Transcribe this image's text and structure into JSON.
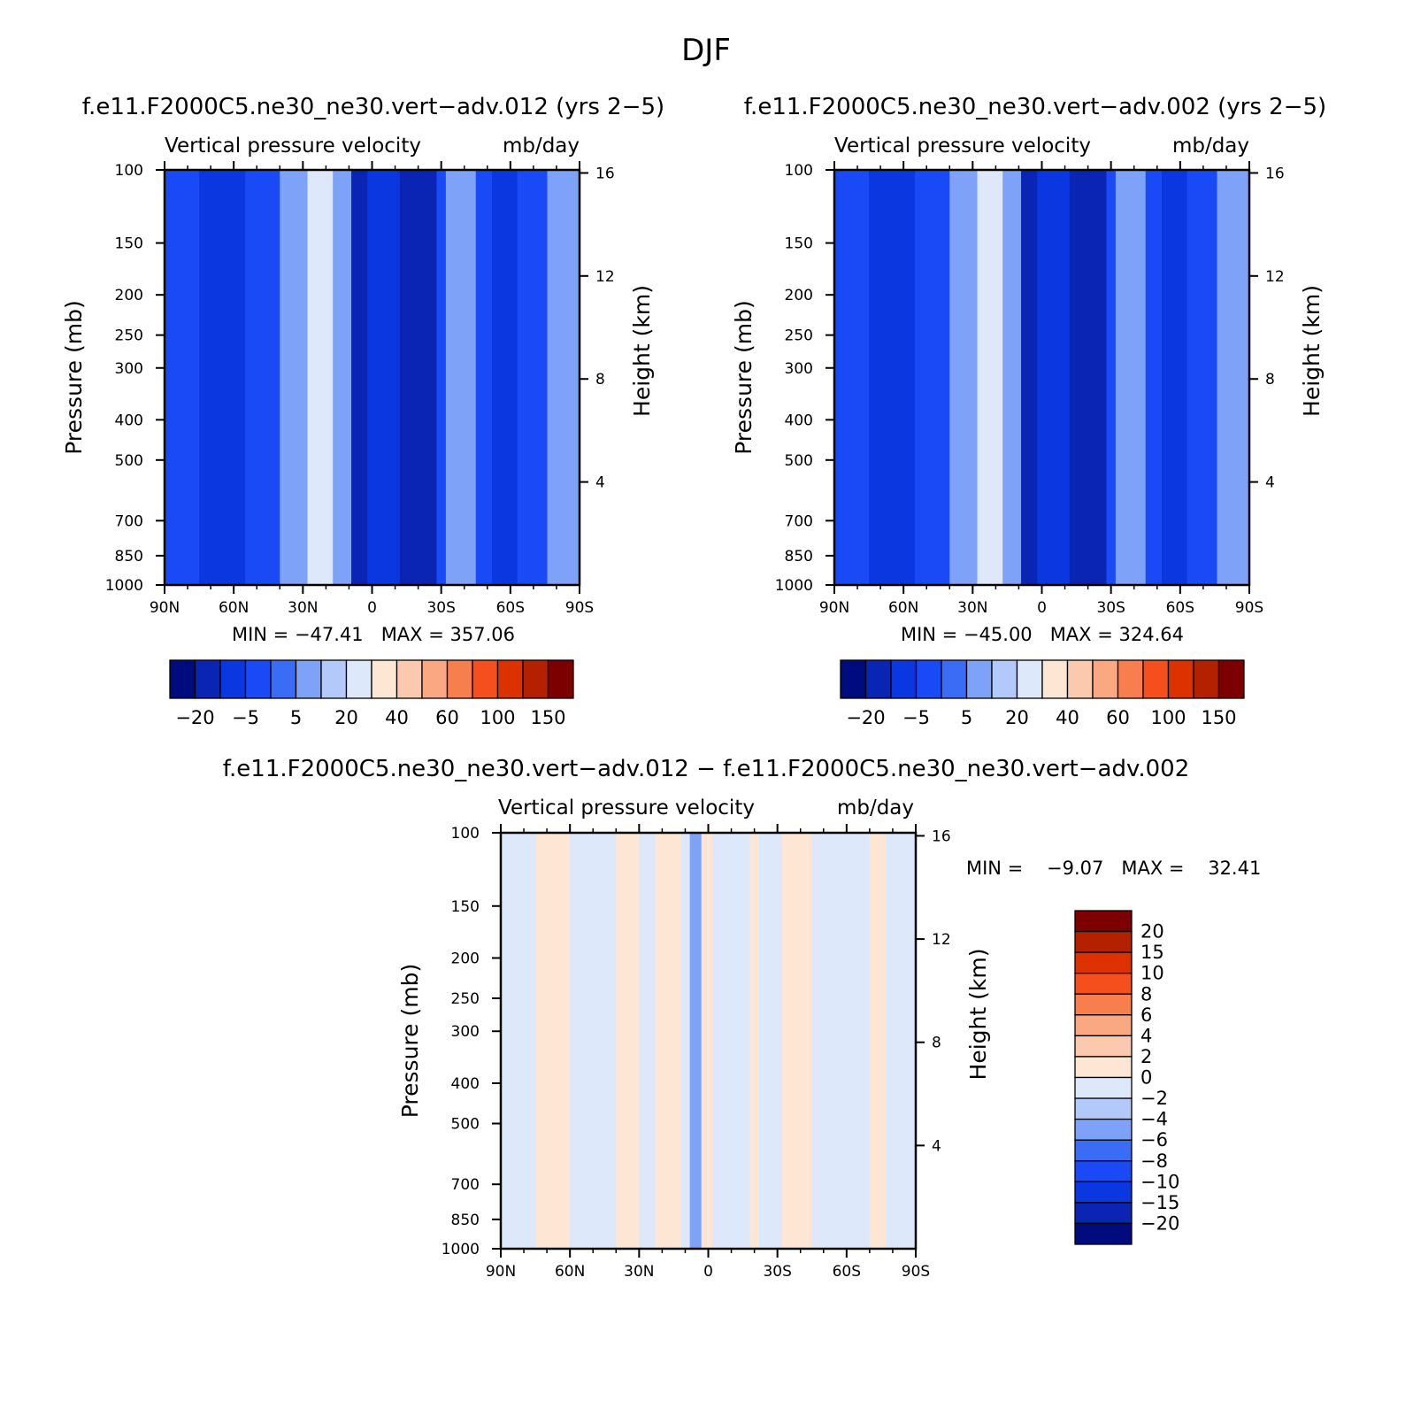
{
  "figure_title": "DJF",
  "palette": {
    "blues": [
      "#000c7d",
      "#0a24b4",
      "#0b37e0",
      "#1a4af5",
      "#3b6cf5",
      "#7ea2f7",
      "#b3c9f9",
      "#dde9fb"
    ],
    "reds": [
      "#fde6d3",
      "#fbc9ad",
      "#f9a882",
      "#f77f4d",
      "#f44f1c",
      "#dd3200",
      "#b42100",
      "#7d0000"
    ]
  },
  "chart_data": [
    {
      "id": "panel_012",
      "type": "heatmap",
      "title": "f.e11.F2000C5.ne30_ne30.vert−adv.012 (yrs 2−5)",
      "subtitle_left": "Vertical pressure velocity",
      "subtitle_right": "mb/day",
      "ylabel": "Pressure (mb)",
      "ylabel_right": "Height (km)",
      "x_ticks": [
        "90N",
        "60N",
        "30N",
        "0",
        "30S",
        "60S",
        "90S"
      ],
      "y_ticks": [
        "100",
        "150",
        "200",
        "250",
        "300",
        "400",
        "500",
        "700",
        "850",
        "1000"
      ],
      "y_right_ticks": [
        "16",
        "12",
        "8",
        "4"
      ],
      "xlim": [
        90,
        -90
      ],
      "ylim": [
        1000,
        100
      ],
      "y_scale": "log",
      "stats": "MIN = −47.41   MAX = 357.06",
      "colorbar_labels": [
        "−20",
        "−5",
        "5",
        "20",
        "40",
        "60",
        "100",
        "150"
      ],
      "fields": [
        {
          "lat": [
            90,
            75
          ],
          "level": 3
        },
        {
          "lat": [
            75,
            55
          ],
          "level": 2
        },
        {
          "lat": [
            55,
            40
          ],
          "level": 3
        },
        {
          "lat": [
            40,
            28
          ],
          "level": 5
        },
        {
          "lat": [
            28,
            17
          ],
          "level": 7
        },
        {
          "lat": [
            17,
            9
          ],
          "level": 5
        },
        {
          "lat": [
            9,
            2
          ],
          "level": 1
        },
        {
          "lat": [
            2,
            -12
          ],
          "level": 2
        },
        {
          "lat": [
            -12,
            -28
          ],
          "level": 1
        },
        {
          "lat": [
            -28,
            -32
          ],
          "level": 3
        },
        {
          "lat": [
            -32,
            -45
          ],
          "level": 5
        },
        {
          "lat": [
            -45,
            -52
          ],
          "level": 3
        },
        {
          "lat": [
            -52,
            -63
          ],
          "level": 2
        },
        {
          "lat": [
            -63,
            -76
          ],
          "level": 3
        },
        {
          "lat": [
            -76,
            -90
          ],
          "level": 5
        }
      ]
    },
    {
      "id": "panel_002",
      "type": "heatmap",
      "title": "f.e11.F2000C5.ne30_ne30.vert−adv.002 (yrs 2−5)",
      "subtitle_left": "Vertical pressure velocity",
      "subtitle_right": "mb/day",
      "ylabel": "Pressure (mb)",
      "ylabel_right": "Height (km)",
      "x_ticks": [
        "90N",
        "60N",
        "30N",
        "0",
        "30S",
        "60S",
        "90S"
      ],
      "y_ticks": [
        "100",
        "150",
        "200",
        "250",
        "300",
        "400",
        "500",
        "700",
        "850",
        "1000"
      ],
      "y_right_ticks": [
        "16",
        "12",
        "8",
        "4"
      ],
      "xlim": [
        90,
        -90
      ],
      "ylim": [
        1000,
        100
      ],
      "y_scale": "log",
      "stats": "MIN = −45.00   MAX = 324.64",
      "colorbar_labels": [
        "−20",
        "−5",
        "5",
        "20",
        "40",
        "60",
        "100",
        "150"
      ],
      "fields": [
        {
          "lat": [
            90,
            75
          ],
          "level": 3
        },
        {
          "lat": [
            75,
            55
          ],
          "level": 2
        },
        {
          "lat": [
            55,
            40
          ],
          "level": 3
        },
        {
          "lat": [
            40,
            28
          ],
          "level": 5
        },
        {
          "lat": [
            28,
            17
          ],
          "level": 7
        },
        {
          "lat": [
            17,
            9
          ],
          "level": 5
        },
        {
          "lat": [
            9,
            2
          ],
          "level": 1
        },
        {
          "lat": [
            2,
            -12
          ],
          "level": 2
        },
        {
          "lat": [
            -12,
            -28
          ],
          "level": 1
        },
        {
          "lat": [
            -28,
            -32
          ],
          "level": 3
        },
        {
          "lat": [
            -32,
            -45
          ],
          "level": 5
        },
        {
          "lat": [
            -45,
            -52
          ],
          "level": 3
        },
        {
          "lat": [
            -52,
            -63
          ],
          "level": 2
        },
        {
          "lat": [
            -63,
            -76
          ],
          "level": 3
        },
        {
          "lat": [
            -76,
            -90
          ],
          "level": 5
        }
      ]
    },
    {
      "id": "panel_diff",
      "type": "heatmap",
      "title": "f.e11.F2000C5.ne30_ne30.vert−adv.012 − f.e11.F2000C5.ne30_ne30.vert−adv.002",
      "subtitle_left": "Vertical pressure velocity",
      "subtitle_right": "mb/day",
      "ylabel": "Pressure (mb)",
      "ylabel_right": "Height (km)",
      "x_ticks": [
        "90N",
        "60N",
        "30N",
        "0",
        "30S",
        "60S",
        "90S"
      ],
      "y_ticks": [
        "100",
        "150",
        "200",
        "250",
        "300",
        "400",
        "500",
        "700",
        "850",
        "1000"
      ],
      "y_right_ticks": [
        "16",
        "12",
        "8",
        "4"
      ],
      "xlim": [
        90,
        -90
      ],
      "ylim": [
        1000,
        100
      ],
      "y_scale": "log",
      "stats": "MIN =    −9.07   MAX =    32.41",
      "colorbar_labels": [
        "20",
        "15",
        "10",
        "8",
        "6",
        "4",
        "2",
        "0",
        "−2",
        "−4",
        "−6",
        "−8",
        "−10",
        "−15",
        "−20"
      ],
      "fields": [
        {
          "lat": [
            90,
            75
          ],
          "level": 7
        },
        {
          "lat": [
            75,
            60
          ],
          "level": 8
        },
        {
          "lat": [
            60,
            40
          ],
          "level": 7
        },
        {
          "lat": [
            40,
            30
          ],
          "level": 8
        },
        {
          "lat": [
            30,
            23
          ],
          "level": 7
        },
        {
          "lat": [
            23,
            12
          ],
          "level": 8
        },
        {
          "lat": [
            12,
            8
          ],
          "level": 7
        },
        {
          "lat": [
            8,
            3
          ],
          "level": 5
        },
        {
          "lat": [
            3,
            -2
          ],
          "level": 8
        },
        {
          "lat": [
            -2,
            -18
          ],
          "level": 7
        },
        {
          "lat": [
            -18,
            -22
          ],
          "level": 8
        },
        {
          "lat": [
            -22,
            -32
          ],
          "level": 7
        },
        {
          "lat": [
            -32,
            -45
          ],
          "level": 8
        },
        {
          "lat": [
            -45,
            -70
          ],
          "level": 7
        },
        {
          "lat": [
            -70,
            -77
          ],
          "level": 8
        },
        {
          "lat": [
            -77,
            -90
          ],
          "level": 7
        }
      ]
    }
  ]
}
